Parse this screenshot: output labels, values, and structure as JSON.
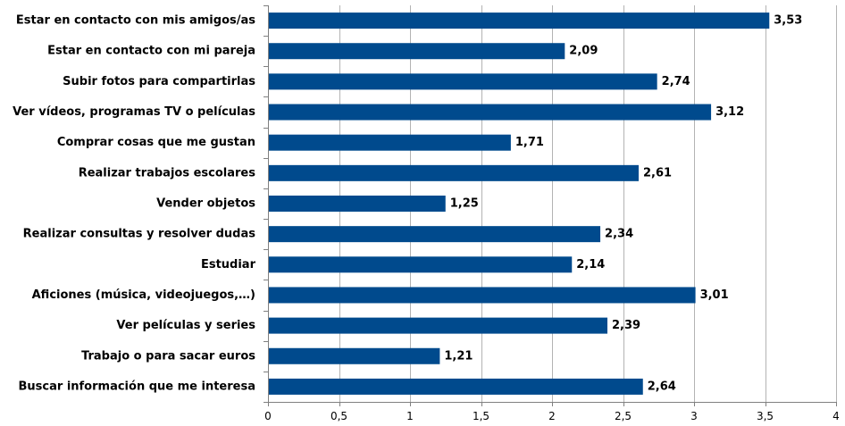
{
  "chart_data": {
    "type": "bar",
    "orientation": "horizontal",
    "title": "",
    "xlabel": "",
    "ylabel": "",
    "categories": [
      "Estar en contacto con mis amigos/as",
      "Estar en contacto con mi pareja",
      "Subir fotos para compartirlas",
      "Ver vídeos, programas TV o películas",
      "Comprar cosas que me gustan",
      "Realizar trabajos escolares",
      "Vender objetos",
      "Realizar consultas y resolver dudas",
      "Estudiar",
      "Aficiones (música, videojuegos,…)",
      "Ver películas y series",
      "Trabajo o para sacar euros",
      "Buscar información que me interesa"
    ],
    "values": [
      3.53,
      2.09,
      2.74,
      3.12,
      1.71,
      2.61,
      1.25,
      2.34,
      2.14,
      3.01,
      2.39,
      1.21,
      2.64
    ],
    "value_labels": [
      "3,53",
      "2,09",
      "2,74",
      "3,12",
      "1,71",
      "2,61",
      "1,25",
      "2,34",
      "2,14",
      "3,01",
      "2,39",
      "1,21",
      "2,64"
    ],
    "xlim": [
      0,
      4
    ],
    "xticks": [
      0,
      0.5,
      1,
      1.5,
      2,
      2.5,
      3,
      3.5,
      4
    ],
    "xtick_labels": [
      "0",
      "0,5",
      "1",
      "1,5",
      "2",
      "2,5",
      "3",
      "3,5",
      "4"
    ],
    "grid": true,
    "bar_color": "#004a8d",
    "grid_color": "#b3b3b3",
    "axis_color": "#808080"
  }
}
